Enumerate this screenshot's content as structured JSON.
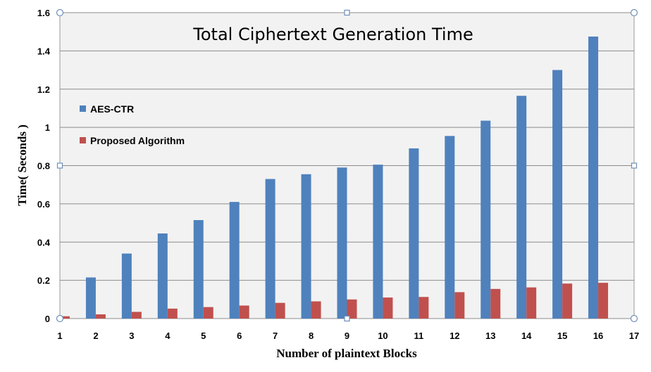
{
  "chart_data": {
    "type": "bar",
    "title": "Total Ciphertext Generation Time",
    "xlabel": "Number of plaintext Blocks",
    "ylabel": "Time( Seconds )",
    "x_ticks": [
      "1",
      "2",
      "3",
      "4",
      "5",
      "6",
      "7",
      "8",
      "9",
      "10",
      "11",
      "12",
      "13",
      "14",
      "15",
      "16",
      "17"
    ],
    "y_ticks": [
      "0",
      "0.2",
      "0.4",
      "0.6",
      "0.8",
      "1",
      "1.2",
      "1.4",
      "1.6"
    ],
    "ylim": [
      0,
      1.6
    ],
    "grid": true,
    "legend_position": "left",
    "categories": [
      "1",
      "2",
      "3",
      "4",
      "5",
      "6",
      "7",
      "8",
      "9",
      "10",
      "11",
      "12",
      "13",
      "14",
      "15",
      "16"
    ],
    "series": [
      {
        "name": "AES-CTR",
        "color": "#4f81bd",
        "values": [
          0.0,
          0.215,
          0.34,
          0.445,
          0.515,
          0.61,
          0.73,
          0.755,
          0.79,
          0.805,
          0.89,
          0.955,
          1.035,
          1.165,
          1.3,
          1.475
        ]
      },
      {
        "name": "Proposed Algorithm",
        "color": "#c0504d",
        "values": [
          0.012,
          0.022,
          0.035,
          0.052,
          0.06,
          0.068,
          0.082,
          0.09,
          0.1,
          0.11,
          0.113,
          0.138,
          0.155,
          0.163,
          0.183,
          0.187
        ]
      }
    ]
  }
}
